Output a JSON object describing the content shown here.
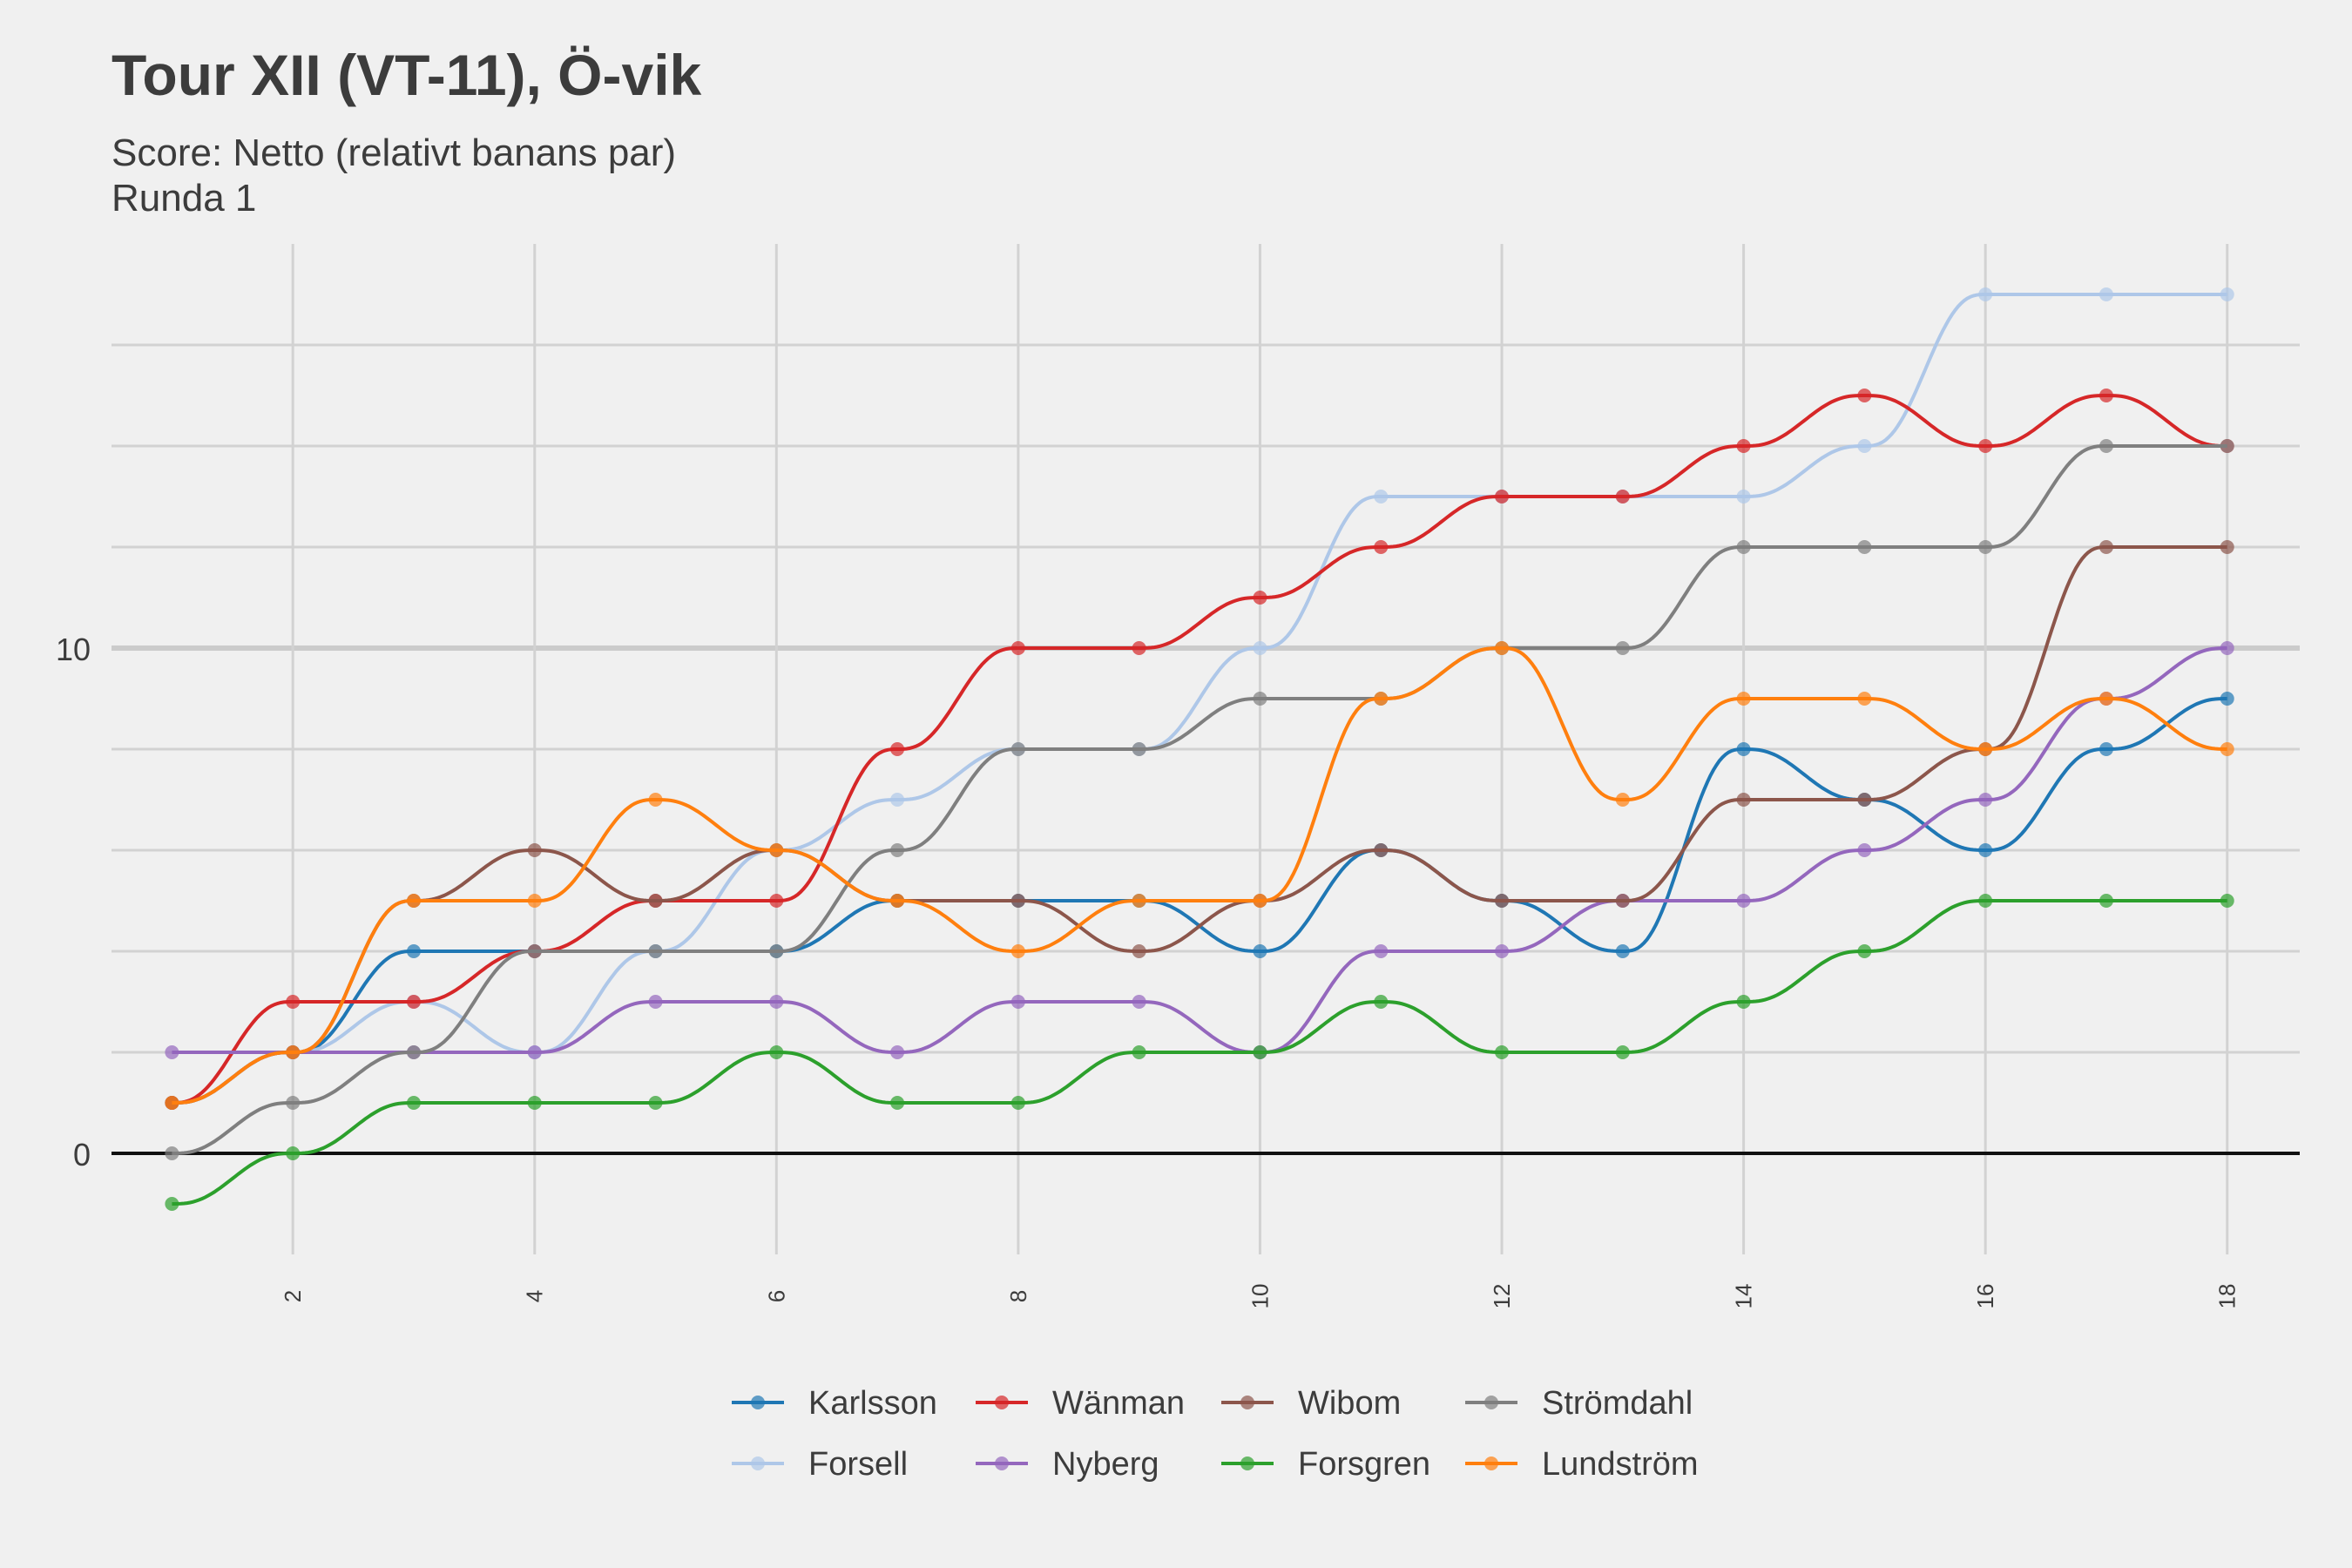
{
  "title": "Tour XII (VT-11), Ö-vik",
  "subtitle_lines": [
    "Score: Netto (relativt banans par)",
    "Runda 1"
  ],
  "chart_data": {
    "type": "line",
    "title": "Tour XII (VT-11), Ö-vik",
    "subtitle": "Score: Netto (relativt banans par) / Runda 1",
    "xlabel": "",
    "ylabel": "",
    "x": [
      1,
      2,
      3,
      4,
      5,
      6,
      7,
      8,
      9,
      10,
      11,
      12,
      13,
      14,
      15,
      16,
      17,
      18
    ],
    "xlim": [
      0.5,
      18.6
    ],
    "ylim": [
      -2,
      18
    ],
    "x_ticks": [
      2,
      4,
      6,
      8,
      10,
      12,
      14,
      16,
      18
    ],
    "y_ticks": [
      0,
      10
    ],
    "grid": true,
    "legend_position": "bottom",
    "series": [
      {
        "name": "Karlsson",
        "color": "#1f77b4",
        "values": [
          1,
          2,
          4,
          4,
          4,
          4,
          5,
          5,
          5,
          4,
          6,
          5,
          4,
          8,
          7,
          6,
          8,
          9
        ]
      },
      {
        "name": "Forsell",
        "color": "#aec7e8",
        "values": [
          1,
          2,
          3,
          2,
          4,
          6,
          7,
          8,
          8,
          10,
          13,
          13,
          13,
          13,
          14,
          17,
          17,
          17
        ]
      },
      {
        "name": "Wänman",
        "color": "#d62728",
        "values": [
          1,
          3,
          3,
          4,
          5,
          5,
          8,
          10,
          10,
          11,
          12,
          13,
          13,
          14,
          15,
          14,
          15,
          14
        ]
      },
      {
        "name": "Nyberg",
        "color": "#9467bd",
        "values": [
          2,
          2,
          2,
          2,
          3,
          3,
          2,
          3,
          3,
          2,
          4,
          4,
          5,
          5,
          6,
          7,
          9,
          10
        ]
      },
      {
        "name": "Wibom",
        "color": "#8c564b",
        "values": [
          1,
          2,
          5,
          6,
          5,
          6,
          5,
          5,
          4,
          5,
          6,
          5,
          5,
          7,
          7,
          8,
          12,
          12
        ]
      },
      {
        "name": "Forsgren",
        "color": "#2ca02c",
        "values": [
          -1,
          0,
          1,
          1,
          1,
          2,
          1,
          1,
          2,
          2,
          3,
          2,
          2,
          3,
          4,
          5,
          5,
          5
        ]
      },
      {
        "name": "Strömdahl",
        "color": "#7f7f7f",
        "values": [
          0,
          1,
          2,
          4,
          4,
          4,
          6,
          8,
          8,
          9,
          9,
          10,
          10,
          12,
          12,
          12,
          14,
          14
        ]
      },
      {
        "name": "Lundström",
        "color": "#ff7f0e",
        "values": [
          1,
          2,
          5,
          5,
          7,
          6,
          5,
          4,
          5,
          5,
          9,
          10,
          7,
          9,
          9,
          8,
          9,
          8
        ]
      }
    ]
  }
}
